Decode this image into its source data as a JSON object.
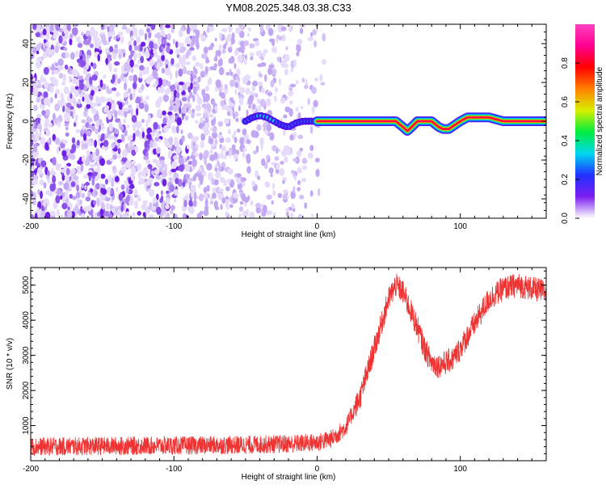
{
  "title": "YM08.2025.348.03.38.C33",
  "colors": {
    "snr_line": "#ee3333",
    "frame": "#000000",
    "background": "#ffffff",
    "noise_purple": "#7b2ff0",
    "noise_light": "#d9c8f7"
  },
  "colorbar": {
    "label": "Normalized spectral amplitude",
    "ticks": [
      "0.0",
      "0.2",
      "0.4",
      "0.6",
      "0.8"
    ],
    "tick_values": [
      0.0,
      0.2,
      0.4,
      0.6,
      0.8
    ],
    "range": [
      0,
      1
    ],
    "gradient": [
      "#ffffff",
      "#7b1ff0",
      "#2030ff",
      "#00d8f0",
      "#00ee40",
      "#d8f000",
      "#ff8000",
      "#ff0000",
      "#ff0090",
      "#ff40c0"
    ]
  },
  "chart_data": [
    {
      "type": "heatmap",
      "name": "spectrogram",
      "xlabel": "Height of straight line (km)",
      "ylabel": "Frequency (Hz)",
      "xlim": [
        -200,
        160
      ],
      "ylim": [
        -50,
        50
      ],
      "xticks": [
        -200,
        -100,
        0,
        100
      ],
      "xtick_labels": [
        "-200",
        "-100",
        "0",
        "100"
      ],
      "yticks": [
        -40,
        -20,
        0,
        20,
        40
      ],
      "ytick_labels": [
        "-40",
        "-20",
        "0",
        "20",
        "40"
      ],
      "noise_region_x": [
        -200,
        5
      ],
      "signal_track": {
        "x": [
          -50,
          -45,
          -40,
          -35,
          -30,
          -25,
          -20,
          -15,
          -10,
          0,
          10,
          20,
          40,
          55,
          60,
          63,
          66,
          70,
          80,
          85,
          88,
          92,
          96,
          100,
          105,
          110,
          120,
          130,
          150,
          160
        ],
        "y": [
          0,
          2,
          3,
          2,
          0,
          -2,
          -3,
          -1,
          0,
          0,
          0,
          0,
          0,
          0,
          -3,
          -5,
          -3,
          0,
          0,
          -3,
          -4,
          -4,
          -2,
          0,
          2,
          2,
          2,
          0,
          0,
          0
        ]
      }
    },
    {
      "type": "line",
      "name": "snr",
      "xlabel": "Height of straight line (km)",
      "ylabel": "SNR (10 * v/v)",
      "xlim": [
        -200,
        160
      ],
      "ylim": [
        0,
        5500
      ],
      "xticks": [
        -200,
        -100,
        0,
        100
      ],
      "xtick_labels": [
        "-200",
        "-100",
        "0",
        "100"
      ],
      "yticks": [
        1000,
        2000,
        3000,
        4000,
        5000
      ],
      "ytick_labels": [
        "1000",
        "2000",
        "3000",
        "4000",
        "5000"
      ],
      "envelope": {
        "x": [
          -200,
          -150,
          -100,
          -50,
          -20,
          0,
          10,
          20,
          30,
          40,
          50,
          55,
          60,
          65,
          70,
          75,
          80,
          85,
          90,
          95,
          100,
          110,
          120,
          130,
          140,
          150,
          160
        ],
        "y": [
          400,
          420,
          430,
          450,
          480,
          520,
          620,
          950,
          1800,
          3200,
          4600,
          5000,
          4800,
          4300,
          3800,
          3200,
          2800,
          2700,
          2800,
          2900,
          3200,
          3900,
          4600,
          4900,
          5000,
          4900,
          4800
        ]
      },
      "noise_amplitude": 350
    }
  ]
}
